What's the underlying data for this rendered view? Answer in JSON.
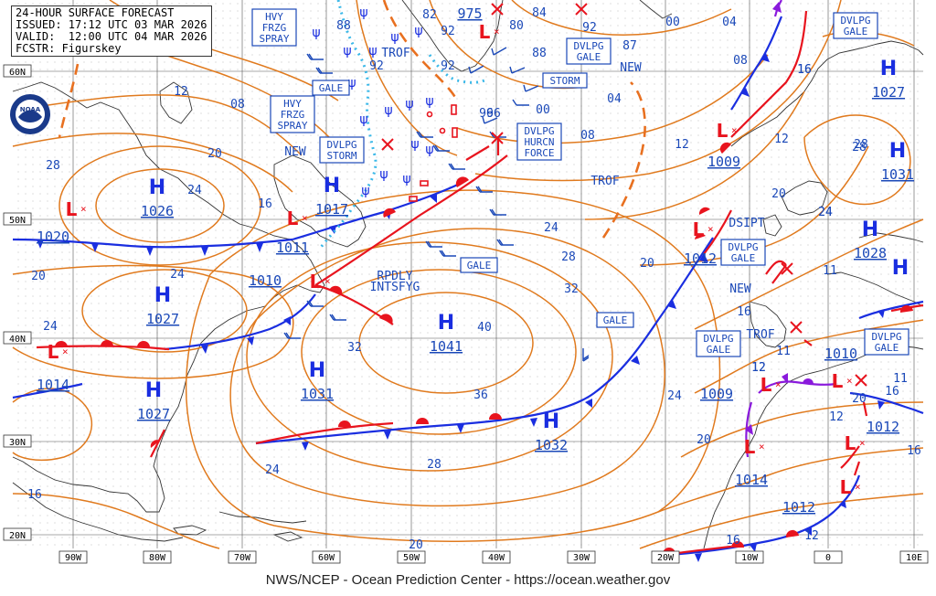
{
  "header": {
    "title": "24-HOUR SURFACE FORECAST",
    "issued": "ISSUED: 17:12 UTC 03 MAR 2026",
    "valid": "VALID:  12:00 UTC 04 MAR 2026",
    "forecaster": "FCSTR: Figurskey"
  },
  "footer": "NWS/NCEP - Ocean Prediction Center - https://ocean.weather.gov",
  "logo_text": "NOAA",
  "colors": {
    "front_warm": "#e8141e",
    "front_cold": "#1a2ee0",
    "occluded": "#8a1adc",
    "isobar": "#e07a1e",
    "text": "#1a48b8",
    "ice": "#3ab8e8",
    "grid": "#444444"
  },
  "lat_labels": [
    "60N",
    "50N",
    "40N",
    "30N",
    "20N"
  ],
  "lon_labels": [
    "90W",
    "80W",
    "70W",
    "60W",
    "50W",
    "40W",
    "30W",
    "20W",
    "10W",
    "0",
    "10E"
  ],
  "highs": [
    {
      "label": "H",
      "pressure": "1026"
    },
    {
      "label": "H",
      "pressure": "1017"
    },
    {
      "label": "H",
      "pressure": "1027"
    },
    {
      "label": "H",
      "pressure": "1041"
    },
    {
      "label": "H",
      "pressure": "1031"
    },
    {
      "label": "H",
      "pressure": "1027"
    },
    {
      "label": "H",
      "pressure": "1032"
    },
    {
      "label": "H",
      "pressure": "1027"
    },
    {
      "label": "H",
      "pressure": "1031"
    },
    {
      "label": "H",
      "pressure": "1028"
    },
    {
      "label": "H",
      "pressure": ""
    }
  ],
  "lows": [
    {
      "pressure": "1020"
    },
    {
      "pressure": "1011"
    },
    {
      "pressure": "1010"
    },
    {
      "pressure": "1014"
    },
    {
      "pressure": "975"
    },
    {
      "pressure": "1009"
    },
    {
      "pressure": "1012"
    },
    {
      "pressure": "1009"
    },
    {
      "pressure": "1014"
    },
    {
      "pressure": "1012"
    },
    {
      "pressure": "1010"
    },
    {
      "pressure": "1012"
    }
  ],
  "boxes": [
    {
      "text": [
        "HVY",
        "FRZG",
        "SPRAY"
      ]
    },
    {
      "text": [
        "GALE"
      ]
    },
    {
      "text": [
        "HVY",
        "FRZG",
        "SPRAY"
      ]
    },
    {
      "text": [
        "DVLPG",
        "STORM"
      ]
    },
    {
      "text": [
        "DVLPG",
        "GALE"
      ]
    },
    {
      "text": [
        "STORM"
      ]
    },
    {
      "text": [
        "DVLPG",
        "HURCN",
        "FORCE"
      ]
    },
    {
      "text": [
        "GALE"
      ]
    },
    {
      "text": [
        "GALE"
      ]
    },
    {
      "text": [
        "DVLPG",
        "GALE"
      ]
    },
    {
      "text": [
        "DVLPG",
        "GALE"
      ]
    },
    {
      "text": [
        "DVLPG",
        "GALE"
      ]
    },
    {
      "text": [
        "DVLPG",
        "GALE"
      ]
    }
  ],
  "labels": [
    "TROF",
    "TROF",
    "TROF",
    "NEW",
    "NEW",
    "NEW",
    "DSIPT",
    "RPDLY",
    "INTSFYG",
    "82",
    "92",
    "88",
    "92",
    "92",
    "84",
    "92",
    "80",
    "88",
    "87",
    "96",
    "00",
    "04",
    "96",
    "00",
    "08",
    "04",
    "16",
    "12",
    "08",
    "20",
    "28",
    "24",
    "16",
    "24",
    "12",
    "08",
    "12",
    "20",
    "24",
    "20",
    "24",
    "28",
    "32",
    "40",
    "32",
    "36",
    "28",
    "24",
    "20",
    "24",
    "16",
    "20",
    "16",
    "12",
    "16",
    "24",
    "20",
    "28",
    "16",
    "20",
    "24",
    "11",
    "11",
    "12",
    "11",
    "16",
    "12",
    "16",
    "28",
    "12"
  ]
}
